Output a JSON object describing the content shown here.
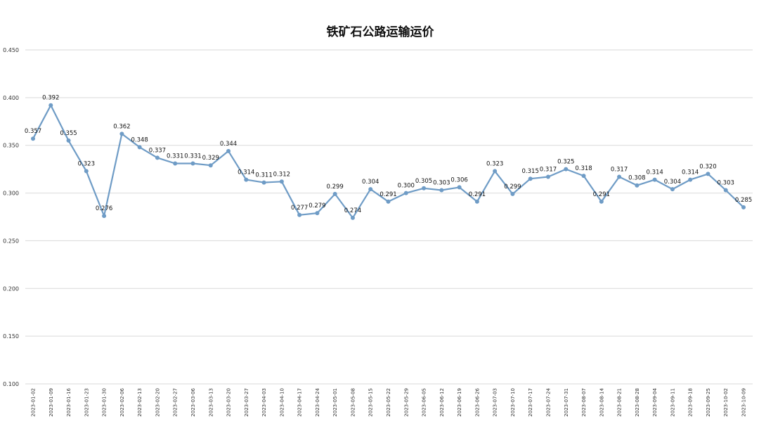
{
  "chart_data": {
    "type": "line",
    "title": "铁矿石公路运输运价",
    "xlabel": "",
    "ylabel": "",
    "ylim": [
      0.1,
      0.45
    ],
    "yticks": [
      "0.100",
      "0.150",
      "0.200",
      "0.250",
      "0.300",
      "0.350",
      "0.400",
      "0.450"
    ],
    "grid": true,
    "legend": "none",
    "color": "#6f9cc6",
    "categories": [
      "2023-01-02",
      "2023-01-09",
      "2023-01-16",
      "2023-01-23",
      "2023-01-30",
      "2023-02-06",
      "2023-02-13",
      "2023-02-20",
      "2023-02-27",
      "2023-03-06",
      "2023-03-13",
      "2023-03-20",
      "2023-03-27",
      "2023-04-03",
      "2023-04-10",
      "2023-04-17",
      "2023-04-24",
      "2023-05-01",
      "2023-05-08",
      "2023-05-15",
      "2023-05-22",
      "2023-05-29",
      "2023-06-05",
      "2023-06-12",
      "2023-06-19",
      "2023-06-26",
      "2023-07-03",
      "2023-07-10",
      "2023-07-17",
      "2023-07-24",
      "2023-07-31",
      "2023-08-07",
      "2023-08-14",
      "2023-08-21",
      "2023-08-28",
      "2023-09-04",
      "2023-09-11",
      "2023-09-18",
      "2023-09-25",
      "2023-10-02",
      "2023-10-09"
    ],
    "values": [
      0.357,
      0.392,
      0.355,
      0.323,
      0.276,
      0.362,
      0.348,
      0.337,
      0.331,
      0.331,
      0.329,
      0.344,
      0.314,
      0.311,
      0.312,
      0.277,
      0.279,
      0.299,
      0.274,
      0.304,
      0.291,
      0.3,
      0.305,
      0.303,
      0.306,
      0.291,
      0.323,
      0.299,
      0.315,
      0.317,
      0.325,
      0.318,
      0.291,
      0.317,
      0.308,
      0.314,
      0.304,
      0.314,
      0.32,
      0.303,
      0.285
    ],
    "data_labels": [
      "0.357",
      "0.392",
      "0.355",
      "0.323",
      "0.276",
      "0.362",
      "0.348",
      "0.337",
      "0.331",
      "0.331",
      "0.329",
      "0.344",
      "0.314",
      "0.311",
      "0.312",
      "0.277",
      "0.279",
      "0.299",
      "0.274",
      "0.304",
      "0.291",
      "0.300",
      "0.305",
      "0.303",
      "0.306",
      "0.291",
      "0.323",
      "0.299",
      "0.315",
      "0.317",
      "0.325",
      "0.318",
      "0.291",
      "0.317",
      "0.308",
      "0.314",
      "0.304",
      "0.314",
      "0.320",
      "0.303",
      "0.285"
    ]
  }
}
